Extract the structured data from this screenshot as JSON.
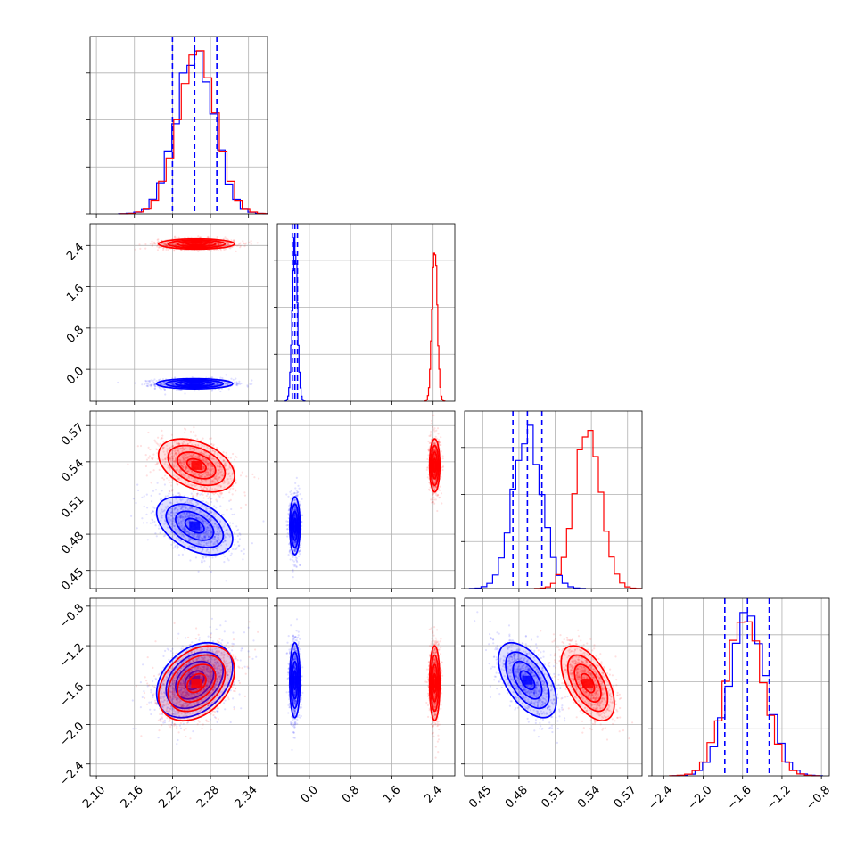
{
  "colors": {
    "blue": "#0000ff",
    "red": "#ff0000",
    "grid": "#b0b0b0"
  },
  "chart_data": {
    "type": "corner",
    "title": "",
    "grid": true,
    "params": [
      {
        "range": [
          2.09,
          2.37
        ],
        "ticks": [
          "2.10",
          "2.16",
          "2.22",
          "2.28",
          "2.34"
        ]
      },
      {
        "range": [
          -0.62,
          2.82
        ],
        "ticks": [
          "0.0",
          "0.8",
          "1.6",
          "2.4"
        ]
      },
      {
        "range": [
          0.435,
          0.582
        ],
        "ticks": [
          "0.45",
          "0.48",
          "0.51",
          "0.54",
          "0.57"
        ]
      },
      {
        "range": [
          -2.52,
          -0.72
        ],
        "ticks": [
          "−2.4",
          "−2.0",
          "−1.6",
          "−1.2",
          "−0.8"
        ]
      }
    ],
    "series": [
      {
        "color": "blue",
        "means": [
          2.255,
          -0.28,
          0.487,
          -1.55
        ],
        "sds": [
          0.03,
          0.05,
          0.012,
          0.19
        ],
        "corr": {
          "0-2": -0.45,
          "0-3": 0.35,
          "2-3": -0.55
        },
        "quantiles": [
          [
            2.22,
            2.255,
            2.29
          ],
          [
            -0.33,
            -0.28,
            -0.23
          ],
          [
            0.475,
            0.487,
            0.499
          ],
          [
            -1.78,
            -1.55,
            -1.33
          ]
        ]
      },
      {
        "color": "red",
        "means": [
          2.258,
          2.43,
          0.537,
          -1.58
        ],
        "sds": [
          0.03,
          0.05,
          0.011,
          0.19
        ],
        "corr": {
          "0-2": -0.4,
          "0-3": 0.35,
          "2-3": -0.55
        }
      }
    ]
  }
}
